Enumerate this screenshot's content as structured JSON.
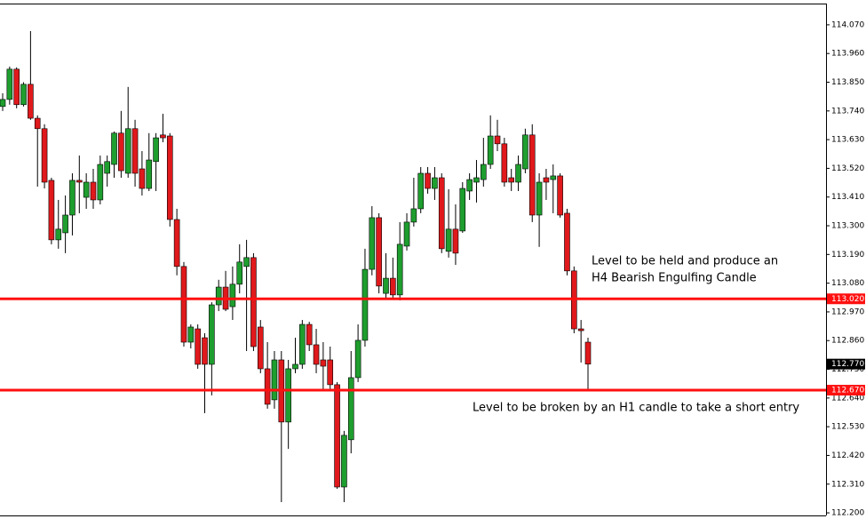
{
  "chart_data": {
    "type": "candlestick",
    "up_color": "#1e9e2e",
    "down_color": "#e0191c",
    "ylim": [
      112.19,
      114.148
    ],
    "yticks": [
      {
        "value": 114.07,
        "label": "114.070"
      },
      {
        "value": 113.96,
        "label": "113.960"
      },
      {
        "value": 113.85,
        "label": "113.850"
      },
      {
        "value": 113.74,
        "label": "113.740"
      },
      {
        "value": 113.63,
        "label": "113.630"
      },
      {
        "value": 113.52,
        "label": "113.520"
      },
      {
        "value": 113.41,
        "label": "113.410"
      },
      {
        "value": 113.3,
        "label": "113.300"
      },
      {
        "value": 113.19,
        "label": "113.190"
      },
      {
        "value": 113.08,
        "label": "113.080"
      },
      {
        "value": 112.97,
        "label": "112.970"
      },
      {
        "value": 112.86,
        "label": "112.860"
      },
      {
        "value": 112.75,
        "label": "112.750"
      },
      {
        "value": 112.64,
        "label": "112.640"
      },
      {
        "value": 112.53,
        "label": "112.530"
      },
      {
        "value": 112.42,
        "label": "112.420"
      },
      {
        "value": 112.31,
        "label": "112.310"
      },
      {
        "value": 112.2,
        "label": "112.200"
      }
    ],
    "open": [
      113.757,
      113.784,
      113.9,
      113.764,
      113.842,
      113.712,
      113.672,
      113.474,
      113.246,
      113.273,
      113.341,
      113.474,
      113.409,
      113.467,
      113.399,
      113.501,
      113.535,
      113.655,
      113.501,
      113.672,
      113.518,
      113.443,
      113.546,
      113.648,
      113.644,
      113.324,
      113.144,
      112.854,
      112.905,
      112.871,
      112.769,
      112.997,
      113.065,
      112.99,
      113.076,
      113.144,
      113.178,
      112.912,
      112.752,
      112.633,
      112.786,
      112.548,
      112.752,
      112.769,
      112.922,
      112.844,
      112.786,
      112.786,
      112.691,
      112.299,
      112.48,
      112.718,
      112.861,
      113.133,
      113.331,
      113.041,
      113.099,
      113.035,
      113.222,
      113.314,
      113.365,
      113.501,
      113.443,
      113.484,
      113.202,
      113.287,
      113.28,
      113.433,
      113.467,
      113.477,
      113.535,
      113.644,
      113.614,
      113.484,
      113.467,
      113.518,
      113.648,
      113.341,
      113.484,
      113.477,
      113.491,
      113.348,
      113.127,
      112.905,
      112.854
    ],
    "high": [
      113.808,
      113.91,
      113.907,
      113.85,
      114.046,
      113.723,
      113.689,
      113.484,
      113.399,
      113.416,
      113.501,
      113.569,
      113.501,
      113.518,
      113.569,
      113.569,
      113.661,
      113.74,
      113.832,
      113.706,
      113.586,
      113.655,
      113.655,
      113.729,
      113.655,
      113.365,
      113.161,
      112.922,
      112.922,
      112.888,
      113.007,
      113.093,
      113.127,
      113.144,
      113.229,
      113.246,
      113.195,
      112.939,
      112.854,
      112.82,
      112.82,
      112.786,
      112.871,
      112.939,
      112.932,
      112.905,
      112.854,
      112.837,
      112.701,
      112.514,
      112.82,
      112.922,
      113.212,
      113.375,
      113.348,
      113.195,
      113.178,
      113.314,
      113.348,
      113.484,
      113.525,
      113.525,
      113.525,
      113.501,
      113.44,
      113.382,
      113.467,
      113.501,
      113.552,
      113.637,
      113.723,
      113.706,
      113.637,
      113.518,
      113.569,
      113.672,
      113.689,
      113.501,
      113.518,
      113.535,
      113.501,
      113.365,
      113.144,
      112.939,
      112.871
    ],
    "low": [
      113.74,
      113.764,
      113.75,
      113.757,
      113.706,
      113.45,
      113.443,
      113.229,
      113.212,
      113.195,
      113.263,
      113.348,
      113.365,
      113.365,
      113.382,
      113.45,
      113.484,
      113.484,
      113.484,
      113.45,
      113.416,
      113.433,
      113.433,
      113.62,
      113.297,
      113.11,
      112.837,
      112.83,
      112.752,
      112.582,
      112.65,
      112.973,
      112.973,
      112.939,
      113.041,
      112.82,
      112.82,
      112.735,
      112.599,
      112.599,
      112.241,
      112.445,
      112.735,
      112.752,
      112.82,
      112.735,
      112.667,
      112.667,
      112.292,
      112.241,
      112.428,
      112.701,
      112.837,
      113.11,
      113.041,
      113.024,
      113.024,
      113.014,
      113.205,
      113.297,
      113.348,
      113.423,
      113.399,
      113.195,
      113.178,
      113.15,
      113.273,
      113.399,
      113.389,
      113.45,
      113.518,
      113.586,
      113.45,
      113.433,
      113.433,
      113.501,
      113.314,
      113.219,
      113.399,
      113.348,
      113.331,
      113.11,
      112.888,
      112.776,
      112.67
    ],
    "close": [
      113.784,
      113.9,
      113.764,
      113.842,
      113.712,
      113.672,
      113.467,
      113.246,
      113.287,
      113.341,
      113.474,
      113.467,
      113.467,
      113.399,
      113.535,
      113.546,
      113.655,
      113.511,
      113.672,
      113.501,
      113.443,
      113.552,
      113.637,
      113.637,
      113.324,
      113.144,
      112.854,
      112.912,
      112.769,
      112.769,
      112.997,
      113.065,
      112.98,
      113.076,
      113.161,
      113.178,
      112.837,
      112.752,
      112.616,
      112.786,
      112.548,
      112.752,
      112.769,
      112.922,
      112.844,
      112.769,
      112.762,
      112.691,
      112.299,
      112.497,
      112.718,
      112.861,
      113.133,
      113.331,
      113.069,
      113.099,
      113.035,
      113.229,
      113.314,
      113.365,
      113.501,
      113.443,
      113.484,
      113.212,
      113.287,
      113.195,
      113.443,
      113.477,
      113.484,
      113.535,
      113.644,
      113.614,
      113.467,
      113.467,
      113.535,
      113.648,
      113.341,
      113.467,
      113.467,
      113.491,
      113.341,
      113.127,
      112.905,
      112.898,
      112.77
    ],
    "lines": [
      {
        "value": 113.02,
        "label": "113.020",
        "color": "#ff1010"
      },
      {
        "value": 112.67,
        "label": "112.670",
        "color": "#ff1010"
      }
    ],
    "current_price": {
      "value": 112.77,
      "label": "112.770"
    },
    "annotations": [
      "Level to be held and produce an",
      "H4 Bearish Engulfing Candle",
      "Level to be broken by an H1 candle to take a short entry"
    ]
  }
}
